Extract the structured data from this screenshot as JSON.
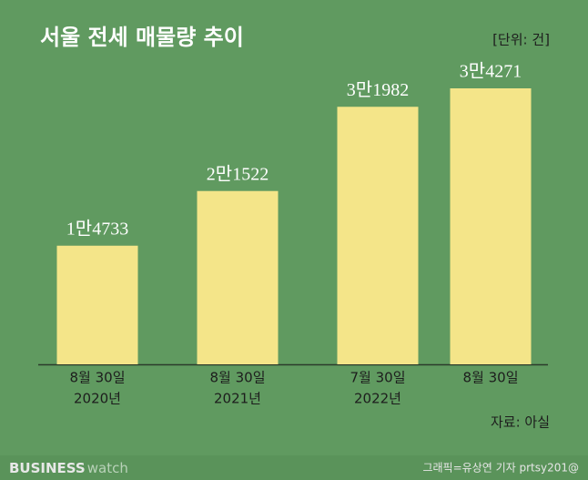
{
  "chart_data": {
    "type": "bar",
    "title": "서울 전세 매물량 추이",
    "unit_note": "[단위: 건]",
    "categories": [
      "8월 30일",
      "8월 30일",
      "7월 30일",
      "8월 30일"
    ],
    "years": [
      "2020년",
      "2021년",
      "2022년",
      null
    ],
    "values": [
      14733,
      21522,
      31982,
      34271
    ],
    "value_labels": [
      "1만4733",
      "2만1522",
      "3만1982",
      "3만4271"
    ],
    "color": "#f4e589",
    "source": "자료: 아실",
    "brand": {
      "bold": "BUSINESS",
      "light": "watch"
    },
    "credit": "그래픽=유상연 기자 prtsy201@"
  }
}
